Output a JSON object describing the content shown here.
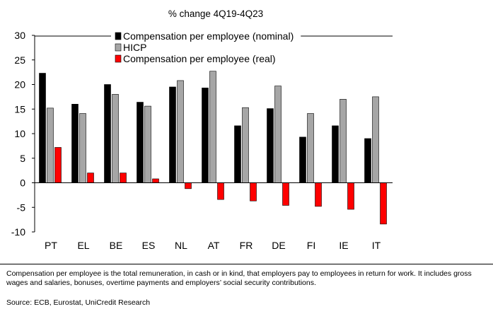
{
  "chart_data": {
    "type": "bar",
    "title": "% change 4Q19-4Q23",
    "categories": [
      "PT",
      "EL",
      "BE",
      "ES",
      "NL",
      "AT",
      "FR",
      "DE",
      "FI",
      "IE",
      "IT"
    ],
    "series": [
      {
        "name": "Compensation per employee (nominal)",
        "color": "#000000",
        "values": [
          22.3,
          16.0,
          20.0,
          16.4,
          19.5,
          19.3,
          11.6,
          15.1,
          9.3,
          11.6,
          9.0
        ]
      },
      {
        "name": "HICP",
        "color": "#a6a6a6",
        "values": [
          15.2,
          14.1,
          18.0,
          15.6,
          20.8,
          22.7,
          15.3,
          19.7,
          14.1,
          17.0,
          17.5
        ]
      },
      {
        "name": "Compensation per employee (real)",
        "color": "#ff0000",
        "values": [
          7.2,
          2.0,
          2.0,
          0.8,
          -1.2,
          -3.4,
          -3.7,
          -4.6,
          -4.8,
          -5.4,
          -8.4
        ]
      }
    ],
    "ylim": [
      -10,
      30
    ],
    "yticks": [
      "30",
      "25",
      "20",
      "15",
      "10",
      "5",
      "0",
      "-5",
      "-10"
    ],
    "grid": false,
    "legend": "top"
  },
  "footnote": "Compensation per employee is the total remuneration, in cash or in kind, that employers pay to employees in return for work. It includes gross wages and salaries, bonuses, overtime payments and employers’ social security contributions.",
  "source": "Source: ECB, Eurostat, UniCredit Research"
}
